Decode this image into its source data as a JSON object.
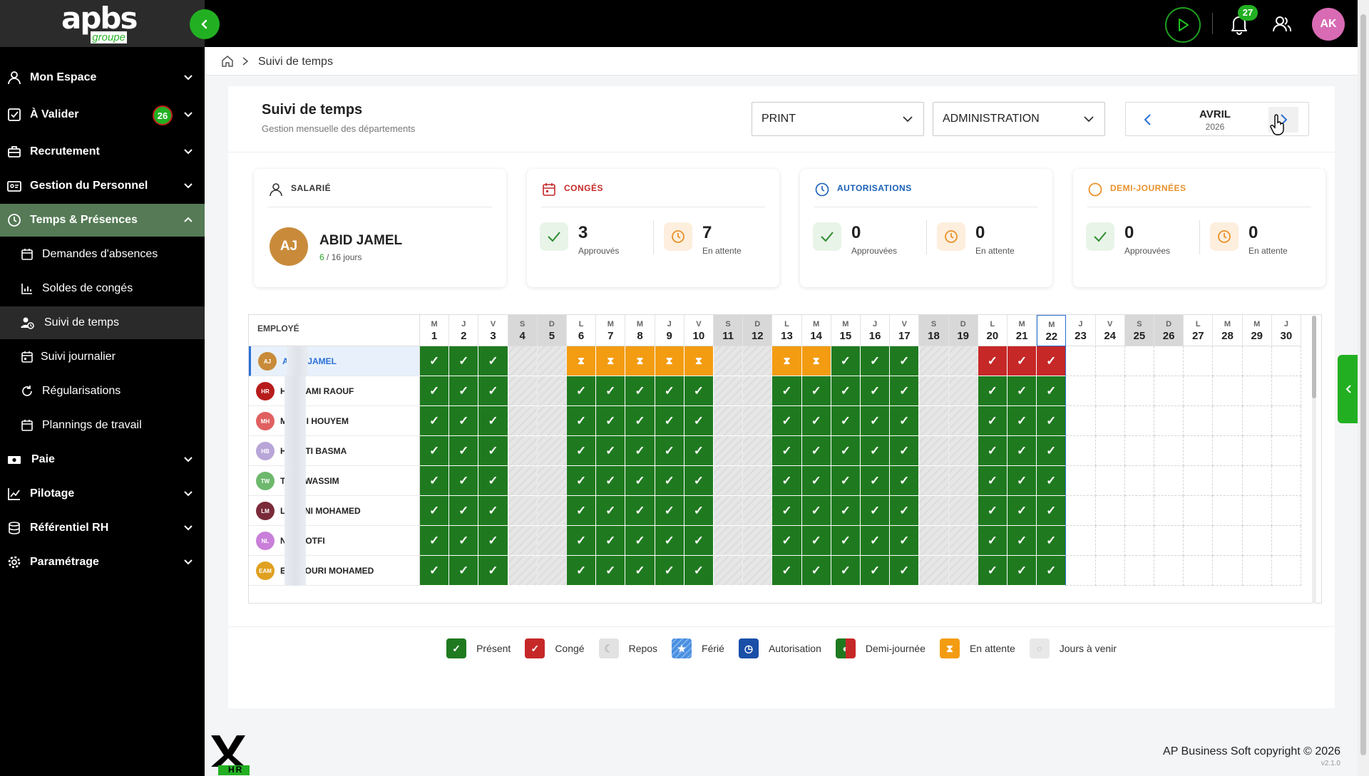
{
  "app": {
    "logo_text": "apbs",
    "logo_sub": "groupe"
  },
  "topbar": {
    "notifications_count": "27",
    "user_initials": "AK"
  },
  "sidebar": {
    "items": [
      {
        "label": "Mon Espace",
        "icon": "user-icon"
      },
      {
        "label": "À Valider",
        "icon": "checkbox-icon",
        "badge": "26"
      },
      {
        "label": "Recrutement",
        "icon": "briefcase-icon"
      },
      {
        "label": "Gestion du Personnel",
        "icon": "id-card-icon"
      },
      {
        "label": "Temps & Présences",
        "icon": "clock-icon"
      },
      {
        "label": "Paie",
        "icon": "money-icon"
      },
      {
        "label": "Pilotage",
        "icon": "chart-line-icon"
      },
      {
        "label": "Référentiel RH",
        "icon": "database-icon"
      },
      {
        "label": "Paramétrage",
        "icon": "gear-icon"
      }
    ],
    "sub_items": [
      {
        "label": "Demandes d'absences"
      },
      {
        "label": "Soldes de congés"
      },
      {
        "label": "Suivi de temps"
      },
      {
        "label": "Suivi journalier"
      },
      {
        "label": "Régularisations"
      },
      {
        "label": "Plannings de travail"
      }
    ]
  },
  "breadcrumb": {
    "current": "Suivi de temps"
  },
  "header": {
    "title": "Suivi de temps",
    "subtitle": "Gestion mensuelle des départements",
    "filter1": "PRINT",
    "filter2": "ADMINISTRATION",
    "month": "AVRIL",
    "year": "2026"
  },
  "stats": {
    "employee": {
      "label": "SALARIÉ",
      "initials": "AJ",
      "name": "ABID JAMEL",
      "days_used": "6",
      "days_total": "/ 16 jours"
    },
    "conges": {
      "label": "CONGÉS",
      "approved": "3",
      "approved_label": "Approuvés",
      "pending": "7",
      "pending_label": "En attente"
    },
    "autorisations": {
      "label": "AUTORISATIONS",
      "approved": "0",
      "approved_label": "Approuvées",
      "pending": "0",
      "pending_label": "En attente"
    },
    "demi": {
      "label": "DEMI-JOURNÉES",
      "approved": "0",
      "approved_label": "Approuvées",
      "pending": "0",
      "pending_label": "En attente"
    }
  },
  "grid": {
    "employee_header": "EMPLOYÉ",
    "days": [
      {
        "l": "M",
        "n": "1"
      },
      {
        "l": "J",
        "n": "2"
      },
      {
        "l": "V",
        "n": "3"
      },
      {
        "l": "S",
        "n": "4"
      },
      {
        "l": "D",
        "n": "5"
      },
      {
        "l": "L",
        "n": "6"
      },
      {
        "l": "M",
        "n": "7"
      },
      {
        "l": "M",
        "n": "8"
      },
      {
        "l": "J",
        "n": "9"
      },
      {
        "l": "V",
        "n": "10"
      },
      {
        "l": "S",
        "n": "11"
      },
      {
        "l": "D",
        "n": "12"
      },
      {
        "l": "L",
        "n": "13"
      },
      {
        "l": "M",
        "n": "14"
      },
      {
        "l": "M",
        "n": "15"
      },
      {
        "l": "J",
        "n": "16"
      },
      {
        "l": "V",
        "n": "17"
      },
      {
        "l": "S",
        "n": "18"
      },
      {
        "l": "D",
        "n": "19"
      },
      {
        "l": "L",
        "n": "20"
      },
      {
        "l": "M",
        "n": "21"
      },
      {
        "l": "M",
        "n": "22"
      },
      {
        "l": "J",
        "n": "23"
      },
      {
        "l": "V",
        "n": "24"
      },
      {
        "l": "S",
        "n": "25"
      },
      {
        "l": "D",
        "n": "26"
      },
      {
        "l": "L",
        "n": "27"
      },
      {
        "l": "M",
        "n": "28"
      },
      {
        "l": "M",
        "n": "29"
      },
      {
        "l": "J",
        "n": "30"
      }
    ],
    "today_day": 22,
    "rows": [
      {
        "initials": "AJ",
        "name": "JAMEL",
        "color": "#c98b3a",
        "pattern": "PPPRRWWWWWRRWWPPPRRCCCFFFFFFFF"
      },
      {
        "initials": "HR",
        "name": "AMI RAOUF",
        "color": "#b71c1c",
        "pattern": "PPPRRPPPPPRRPPPPPRRPPPFFFFFFFF"
      },
      {
        "initials": "MH",
        "name": "I HOUYEM",
        "color": "#e06060",
        "pattern": "PPPRRPPPPPRRPPPPPRRPPPFFFFFFFF"
      },
      {
        "initials": "HB",
        "name": "TI BASMA",
        "color": "#b8a6d8",
        "pattern": "PPPRRPPPPPRRPPPPPRRPPPFFFFFFFF"
      },
      {
        "initials": "TW",
        "name": "WASSIM",
        "color": "#6db86d",
        "pattern": "PPPRRPPPPPRRPPPPPRRPPPFFFFFFFF"
      },
      {
        "initials": "LM",
        "name": "NI MOHAMED",
        "color": "#7a2b3a",
        "pattern": "PPPRRPPPPPRRPPPPPRRPPPFFFFFFFF"
      },
      {
        "initials": "NL",
        "name": "OTFI",
        "color": "#c97fd9",
        "pattern": "PPPRRPPPPPRRPPPPPRRPPPFFFFFFFF"
      },
      {
        "initials": "EAM",
        "name": "OURI MOHAMED",
        "color": "#e0a020",
        "pattern": "PPPRRPPPPPRRPPPPPRRPPPFFFFFFFF"
      }
    ],
    "prefix_letters": [
      "A",
      "H",
      "M",
      "H",
      "T",
      "L",
      "N",
      "E"
    ]
  },
  "legend": [
    {
      "label": "Présent",
      "color": "#1f7a1f",
      "icon": "check-icon"
    },
    {
      "label": "Congé",
      "color": "#c62828",
      "icon": "check-icon"
    },
    {
      "label": "Repos",
      "color": "#e2e2e2",
      "icon": "moon-icon"
    },
    {
      "label": "Férié",
      "color": "#4a8fe0",
      "icon": "star-icon"
    },
    {
      "label": "Autorisation",
      "color": "#1a4fa8",
      "icon": "clock-icon"
    },
    {
      "label": "Demi-journée",
      "color": "#c62828",
      "icon": "half-circle-icon"
    },
    {
      "label": "En attente",
      "color": "#f39c12",
      "icon": "hourglass-icon"
    },
    {
      "label": "Jours à venir",
      "color": "#e8e8e8",
      "icon": "circle-icon"
    }
  ],
  "footer": {
    "copyright": "AP Business Soft copyright © 2026",
    "version": "v2.1.0",
    "logo_text": "HR"
  }
}
